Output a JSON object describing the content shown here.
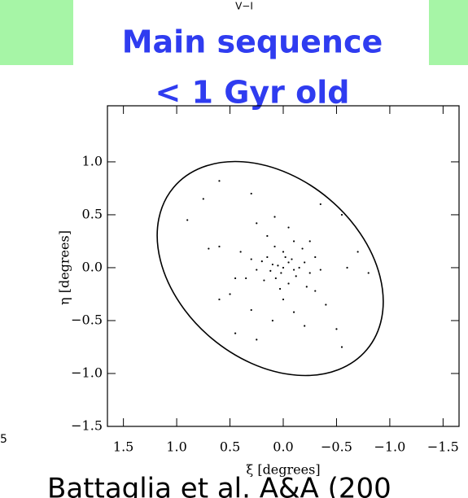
{
  "slide": {
    "top_label": "V−I",
    "title_line1": "Main sequence",
    "title_line2": "< 1 Gyr old",
    "left_fragment": "5",
    "citation": "Battaglia et al. A&A (200"
  },
  "chart_data": {
    "type": "scatter",
    "x_label": "ξ [degrees]",
    "y_label": "η [degrees]",
    "xlim": [
      1.65,
      -1.65
    ],
    "ylim": [
      -1.5,
      1.53
    ],
    "xticks": [
      {
        "value": 1.5,
        "label": "1.5"
      },
      {
        "value": 1.0,
        "label": "1.0"
      },
      {
        "value": 0.5,
        "label": "0.5"
      },
      {
        "value": 0.0,
        "label": "0.0"
      },
      {
        "value": -0.5,
        "label": "−0.5"
      },
      {
        "value": -1.0,
        "label": "−1.0"
      },
      {
        "value": -1.5,
        "label": "−1.5"
      }
    ],
    "yticks": [
      {
        "value": -1.5,
        "label": "−1.5"
      },
      {
        "value": -1.0,
        "label": "−1.0"
      },
      {
        "value": -0.5,
        "label": "−0.5"
      },
      {
        "value": 0.0,
        "label": "0.0"
      },
      {
        "value": 0.5,
        "label": "0.5"
      },
      {
        "value": 1.0,
        "label": "1.0"
      }
    ],
    "color": "#000000",
    "x": [
      0.05,
      0.0,
      -0.05,
      -0.1,
      0.1,
      -0.15,
      0.02,
      -0.08,
      0.12,
      -0.2,
      0.2,
      -0.02,
      0.07,
      -0.12,
      0.15,
      -0.25,
      0.25,
      0.0,
      -0.05,
      0.3,
      -0.3,
      0.08,
      -0.18,
      0.18,
      -0.1,
      0.03,
      -0.22,
      0.35,
      -0.35,
      0.4,
      0.6,
      0.3,
      -0.35,
      0.08,
      0.25,
      0.6,
      0.7,
      0.75,
      -0.55,
      -0.7,
      -0.8,
      0.6,
      0.3,
      0.1,
      -0.2,
      -0.4,
      -0.3,
      0.45,
      0.9,
      -0.5,
      0.25,
      -0.1,
      0.5,
      -0.55,
      0.45,
      -0.6,
      0.15,
      -0.05,
      0.0,
      -0.25
    ],
    "y": [
      0.02,
      0.0,
      0.05,
      -0.02,
      0.03,
      0.0,
      -0.05,
      0.08,
      -0.03,
      0.05,
      0.06,
      0.1,
      -0.1,
      -0.08,
      0.1,
      -0.05,
      -0.02,
      0.15,
      -0.15,
      0.08,
      0.1,
      0.2,
      0.18,
      -0.12,
      0.25,
      -0.2,
      -0.18,
      -0.1,
      -0.02,
      0.15,
      0.82,
      0.7,
      0.6,
      0.48,
      0.42,
      0.2,
      0.18,
      0.65,
      0.5,
      0.15,
      -0.05,
      -0.3,
      -0.4,
      -0.5,
      -0.55,
      -0.35,
      -0.22,
      -0.1,
      0.45,
      -0.58,
      -0.68,
      -0.42,
      -0.25,
      -0.75,
      -0.62,
      0.0,
      0.3,
      0.38,
      -0.3,
      0.25
    ]
  }
}
